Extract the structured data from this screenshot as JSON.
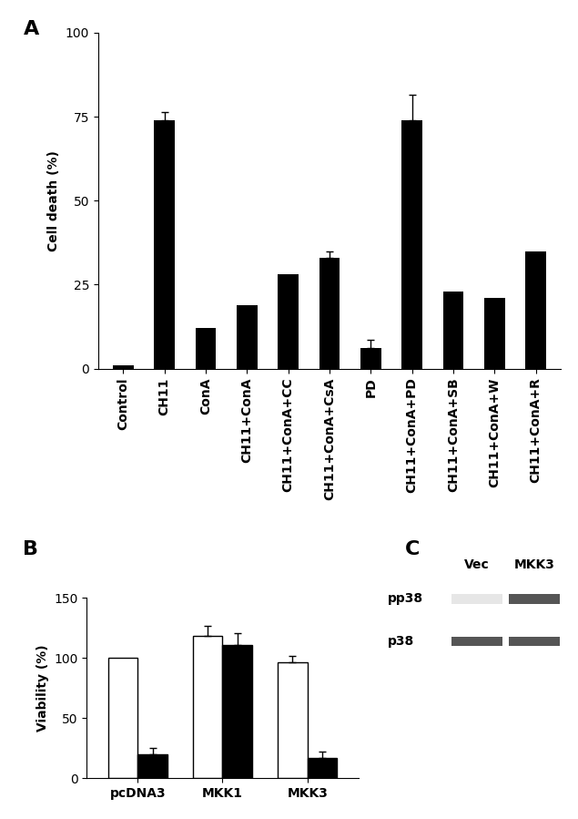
{
  "chart_data": [
    {
      "type": "bar",
      "panel": "A",
      "y_label": "Cell death (%)",
      "categories": [
        "Control",
        "CH11",
        "ConA",
        "CH11+ConA",
        "CH11+ConA+CC",
        "CH11+ConA+CsA",
        "PD",
        "CH11+ConA+PD",
        "CH11+ConA+SB",
        "CH11+ConA+W",
        "CH11+ConA+R"
      ],
      "values": [
        1,
        74,
        12,
        19,
        28,
        33,
        6,
        74,
        23,
        21,
        35
      ],
      "errors": [
        null,
        2.5,
        null,
        null,
        null,
        2,
        2.5,
        7.5,
        null,
        null,
        null
      ],
      "color": "#000000",
      "ylim": [
        0,
        100
      ],
      "yticks": [
        0,
        25,
        50,
        75,
        100
      ]
    },
    {
      "type": "bar",
      "panel": "B",
      "y_label": "Viability (%)",
      "categories": [
        "pcDNA3",
        "MKK1",
        "MKK3"
      ],
      "series": [
        {
          "color": "#ffffff",
          "values": [
            100,
            118,
            96
          ],
          "errors": [
            null,
            9,
            6
          ]
        },
        {
          "color": "#000000",
          "values": [
            20,
            111,
            17
          ],
          "errors": [
            5,
            10,
            5
          ]
        }
      ],
      "ylim": [
        0,
        150
      ],
      "yticks": [
        0,
        50,
        100,
        150
      ]
    }
  ],
  "blot": {
    "panel": "C",
    "lanes": [
      "Vec",
      "MKK3"
    ],
    "rows": [
      "pp38",
      "p38"
    ]
  }
}
